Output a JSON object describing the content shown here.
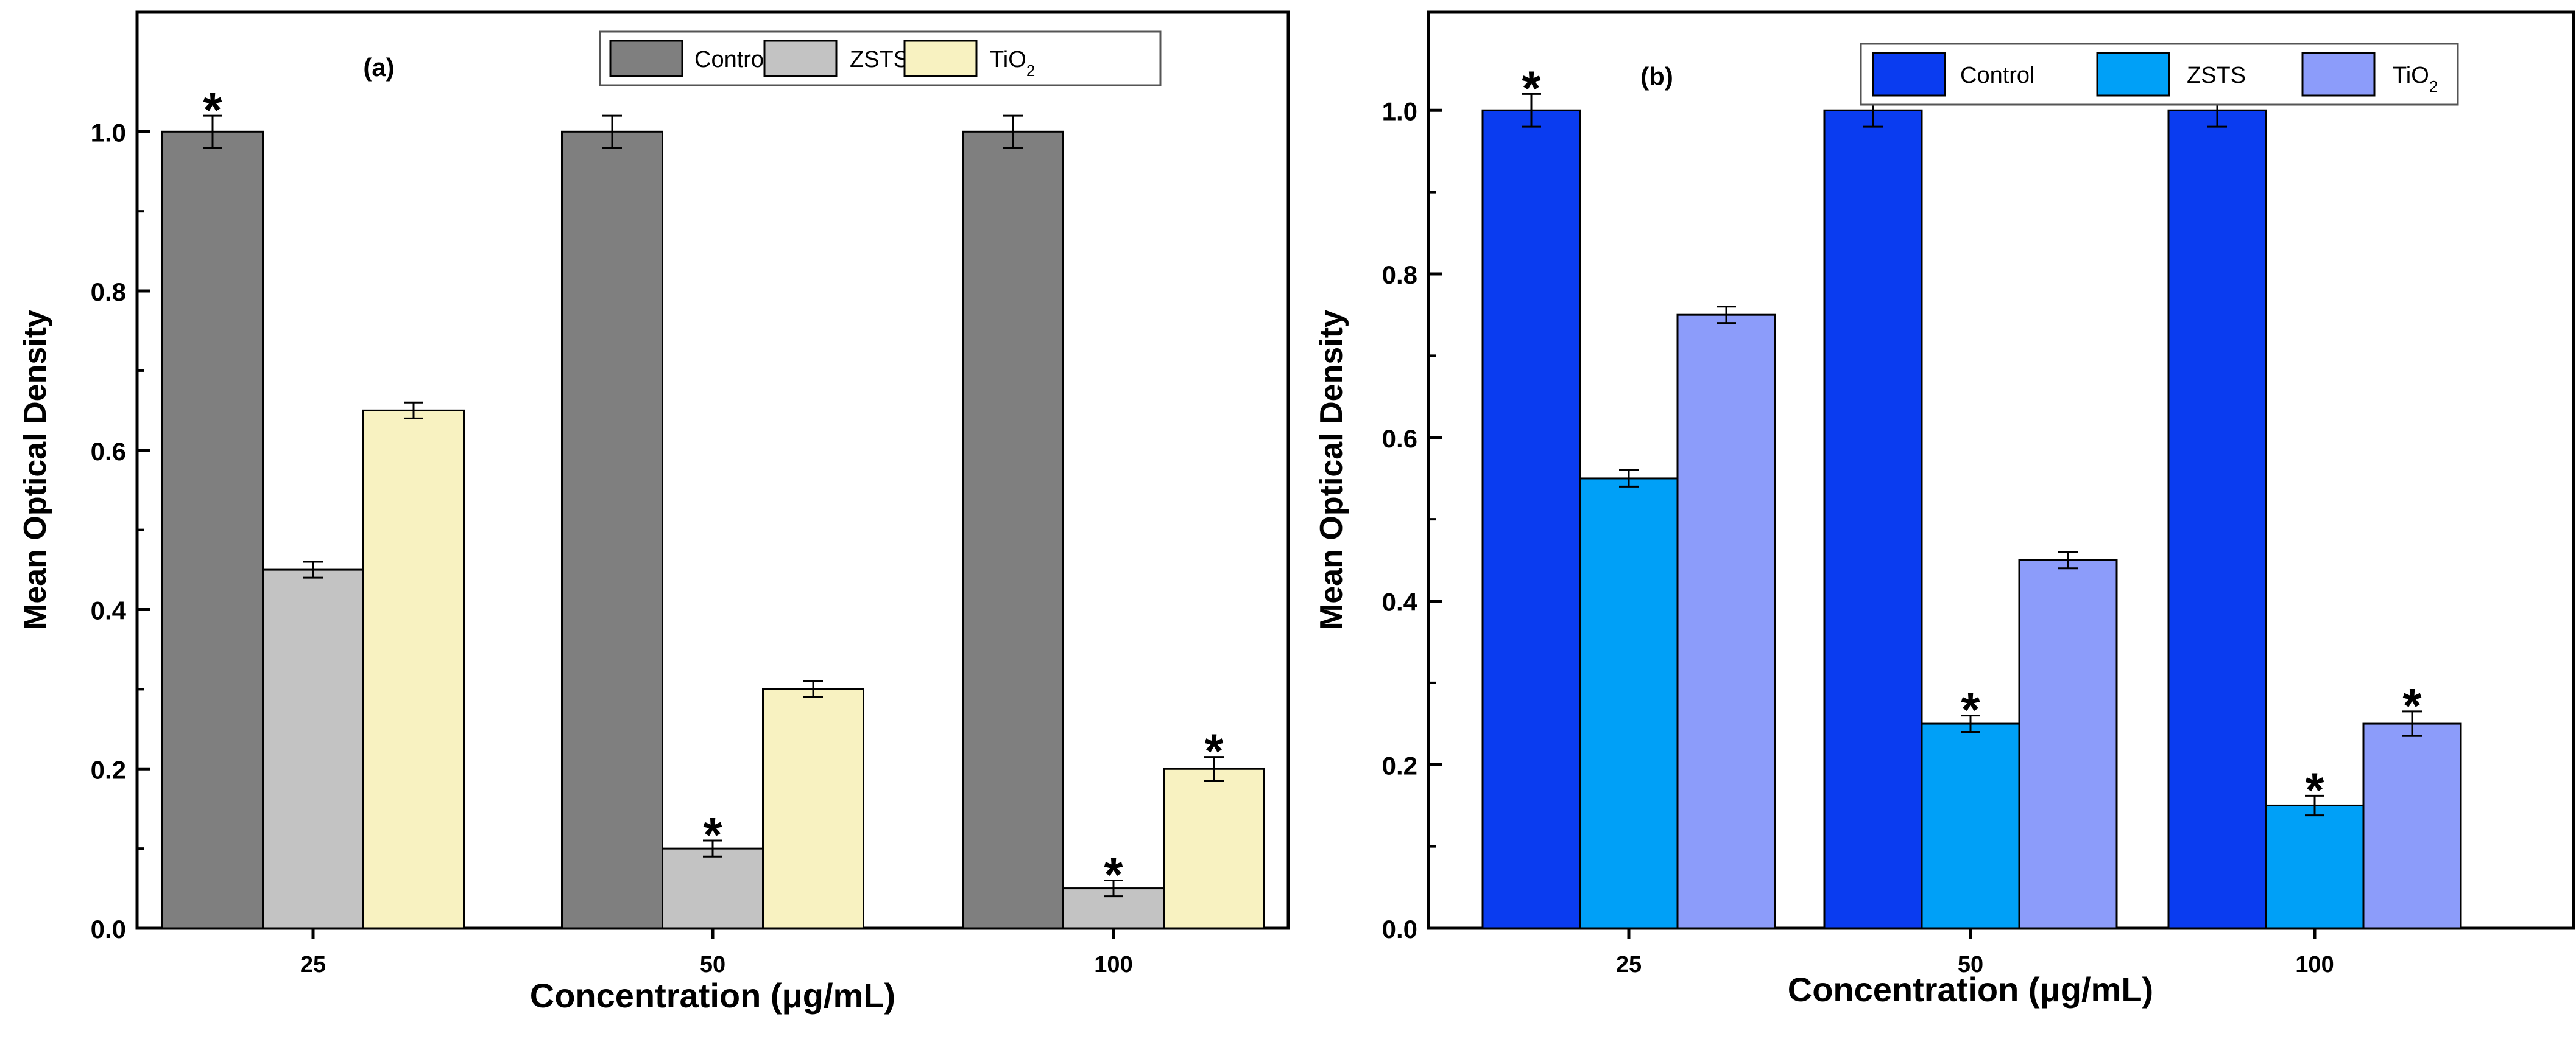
{
  "chart_data": [
    {
      "type": "bar",
      "title": "",
      "panel_label": "(a)",
      "categories": [
        "25",
        "50",
        "100"
      ],
      "series": [
        {
          "name": "Control",
          "name_base": "Control",
          "name_sub": "",
          "color": "#7f7f7f",
          "values": [
            1.0,
            1.0,
            1.0
          ],
          "errors": [
            0.02,
            0.02,
            0.02
          ],
          "significant": [
            true,
            false,
            false
          ]
        },
        {
          "name": "ZSTS",
          "name_base": "ZSTS",
          "name_sub": "",
          "color": "#c3c3c3",
          "values": [
            0.45,
            0.1,
            0.05
          ],
          "errors": [
            0.01,
            0.01,
            0.01
          ],
          "significant": [
            false,
            true,
            true
          ]
        },
        {
          "name": "TiO2",
          "name_base": "TiO",
          "name_sub": "2",
          "color": "#f8f2c1",
          "values": [
            0.65,
            0.3,
            0.2
          ],
          "errors": [
            0.01,
            0.01,
            0.015
          ],
          "significant": [
            false,
            false,
            true
          ]
        }
      ],
      "xlabel": "Concentration (μg/mL)",
      "ylabel": "Mean Optical Density",
      "ylim": [
        0,
        1.15
      ],
      "yticks": [
        "0.0",
        "0.2",
        "0.4",
        "0.6",
        "0.8",
        "1.0"
      ],
      "significance_marker": "*",
      "legend": "top-right",
      "grid": false
    },
    {
      "type": "bar",
      "title": "",
      "panel_label": "(b)",
      "categories": [
        "25",
        "50",
        "100"
      ],
      "series": [
        {
          "name": "Control",
          "name_base": "Control",
          "name_sub": "",
          "color": "#0a3cf0",
          "values": [
            1.0,
            1.0,
            1.0
          ],
          "errors": [
            0.02,
            0.02,
            0.02
          ],
          "significant": [
            true,
            false,
            false
          ]
        },
        {
          "name": "ZSTS",
          "name_base": "ZSTS",
          "name_sub": "",
          "color": "#00a0f7",
          "values": [
            0.55,
            0.25,
            0.15
          ],
          "errors": [
            0.01,
            0.01,
            0.012
          ],
          "significant": [
            false,
            true,
            true
          ]
        },
        {
          "name": "TiO2",
          "name_base": "TiO",
          "name_sub": "2",
          "color": "#8c9cfa",
          "values": [
            0.75,
            0.45,
            0.25
          ],
          "errors": [
            0.01,
            0.01,
            0.015
          ],
          "significant": [
            false,
            false,
            true
          ]
        }
      ],
      "xlabel": "Concentration (μg/mL)",
      "ylabel": "Mean Optical Density",
      "ylim": [
        0,
        1.12
      ],
      "yticks": [
        "0.0",
        "0.2",
        "0.4",
        "0.6",
        "0.8",
        "1.0"
      ],
      "significance_marker": "*",
      "legend": "top-right",
      "grid": false
    }
  ]
}
